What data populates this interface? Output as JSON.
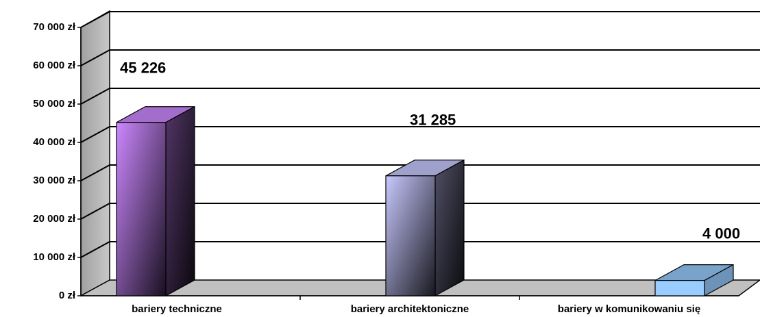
{
  "chart_data": {
    "type": "bar3d",
    "categories": [
      "bariery techniczne",
      "bariery architektoniczne",
      "bariery w komunikowaniu się"
    ],
    "values": [
      45226,
      31285,
      4000
    ],
    "value_labels": [
      "45 226",
      "31 285",
      "4 000"
    ],
    "colors": [
      "#cc88ff",
      "#c8c8ff",
      "#99ccff"
    ],
    "ylim": [
      0,
      70000
    ],
    "yticks": [
      {
        "value": 0,
        "label": "0 zł"
      },
      {
        "value": 10000,
        "label": "10 000 zł"
      },
      {
        "value": 20000,
        "label": "20 000 zł"
      },
      {
        "value": 30000,
        "label": "30 000 zł"
      },
      {
        "value": 40000,
        "label": "40 000 zł"
      },
      {
        "value": 50000,
        "label": "50 000 zł"
      },
      {
        "value": 60000,
        "label": "60 000 zł"
      },
      {
        "value": 70000,
        "label": "70 000 zł"
      }
    ],
    "grid": true
  }
}
